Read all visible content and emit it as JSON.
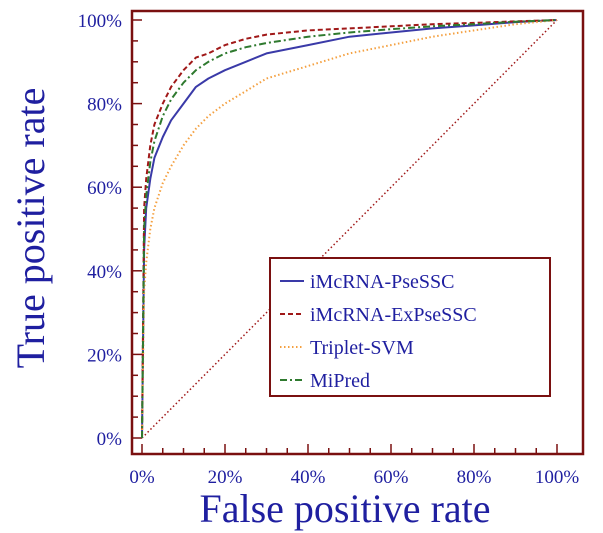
{
  "chart_data": {
    "type": "line",
    "xlabel": "False positive rate",
    "ylabel": "True positive rate",
    "xlim": [
      0,
      100
    ],
    "ylim": [
      0,
      100
    ],
    "x_ticks": [
      "0%",
      "20%",
      "40%",
      "60%",
      "80%",
      "100%"
    ],
    "y_ticks": [
      "0%",
      "20%",
      "40%",
      "60%",
      "80%",
      "100%"
    ],
    "legend_position": "bottom-right",
    "colors": {
      "axis": "#7a1010",
      "text": "#1f1fa0"
    },
    "series": [
      {
        "name": "iMcRNA-PseSSC",
        "color": "#3a3aa8",
        "style": "solid",
        "x": [
          0,
          0.5,
          1,
          2,
          3,
          5,
          7,
          10,
          13,
          16,
          20,
          25,
          30,
          40,
          50,
          60,
          70,
          80,
          90,
          100
        ],
        "y": [
          0,
          45,
          55,
          62,
          67,
          72,
          76,
          80,
          84,
          86,
          88,
          90,
          92,
          94,
          96,
          97,
          98,
          98.7,
          99.5,
          100
        ]
      },
      {
        "name": "iMcRNA-ExPseSSC",
        "color": "#a01818",
        "style": "dashed",
        "x": [
          0,
          0.5,
          1,
          2,
          3,
          5,
          7,
          10,
          13,
          16,
          20,
          25,
          30,
          40,
          50,
          60,
          70,
          80,
          90,
          100
        ],
        "y": [
          0,
          55,
          62,
          70,
          75,
          80,
          84,
          88,
          91,
          92,
          94,
          95.5,
          96.5,
          97.5,
          98,
          98.5,
          99,
          99.3,
          99.7,
          100
        ]
      },
      {
        "name": "Triplet-SVM",
        "color": "#f4a040",
        "style": "dotted",
        "x": [
          0,
          0.5,
          1,
          2,
          3,
          5,
          7,
          10,
          13,
          16,
          20,
          25,
          30,
          40,
          50,
          60,
          70,
          80,
          90,
          100
        ],
        "y": [
          0,
          35,
          42,
          50,
          55,
          61,
          65,
          70,
          74,
          77,
          80,
          83,
          86,
          89,
          92,
          94,
          96,
          97.5,
          99,
          100
        ]
      },
      {
        "name": "MiPred",
        "color": "#2f7a2f",
        "style": "dashdot",
        "x": [
          0,
          0.5,
          1,
          2,
          3,
          5,
          7,
          10,
          13,
          16,
          20,
          25,
          30,
          40,
          50,
          60,
          70,
          80,
          90,
          100
        ],
        "y": [
          0,
          50,
          58,
          66,
          71,
          77,
          81,
          85,
          88,
          90,
          92,
          93.5,
          94.5,
          96,
          97,
          97.8,
          98.5,
          99,
          99.6,
          100
        ]
      },
      {
        "name": "",
        "color": "#a01818",
        "style": "dotted",
        "x": [
          0,
          100
        ],
        "y": [
          0,
          100
        ]
      }
    ]
  }
}
